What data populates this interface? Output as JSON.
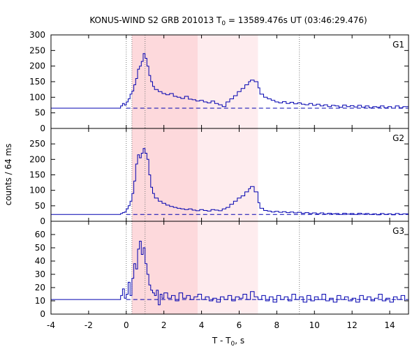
{
  "chart_data": {
    "type": "line",
    "title": {
      "prefix": "KONUS-WIND S2 GRB 201013 T",
      "sub": "0",
      "suffix": " = 13589.476s UT (03:46:29.476)"
    },
    "xlabel": {
      "prefix": "T - T",
      "sub": "0",
      "suffix": ", s"
    },
    "ylabel": "counts / 64 ms",
    "xlim": [
      -4,
      15
    ],
    "xticks": [
      -4,
      -2,
      0,
      2,
      4,
      6,
      8,
      10,
      12,
      14
    ],
    "shaded_intervals": [
      {
        "x0": 0.3,
        "x1": 3.8,
        "color": "#fdd9dc"
      },
      {
        "x0": 3.8,
        "x1": 7.0,
        "color": "#feecee"
      }
    ],
    "vertical_markers": [
      0.0,
      0.3,
      1.0,
      9.2
    ],
    "line_color": "#0000b0",
    "panels": [
      {
        "name": "G1",
        "ylim": [
          0,
          300
        ],
        "yticks": [
          0,
          50,
          100,
          150,
          200,
          250,
          300
        ],
        "background_level": 65,
        "series": [
          [
            -4.0,
            65
          ],
          [
            -0.4,
            65
          ],
          [
            -0.3,
            72
          ],
          [
            -0.2,
            80
          ],
          [
            -0.1,
            75
          ],
          [
            0.0,
            85
          ],
          [
            0.1,
            95
          ],
          [
            0.2,
            110
          ],
          [
            0.3,
            120
          ],
          [
            0.4,
            140
          ],
          [
            0.5,
            160
          ],
          [
            0.6,
            190
          ],
          [
            0.7,
            200
          ],
          [
            0.8,
            215
          ],
          [
            0.9,
            240
          ],
          [
            1.0,
            225
          ],
          [
            1.1,
            200
          ],
          [
            1.2,
            170
          ],
          [
            1.3,
            150
          ],
          [
            1.4,
            135
          ],
          [
            1.5,
            125
          ],
          [
            1.7,
            118
          ],
          [
            1.9,
            112
          ],
          [
            2.1,
            108
          ],
          [
            2.3,
            112
          ],
          [
            2.5,
            103
          ],
          [
            2.7,
            100
          ],
          [
            2.9,
            96
          ],
          [
            3.1,
            103
          ],
          [
            3.3,
            94
          ],
          [
            3.5,
            92
          ],
          [
            3.7,
            88
          ],
          [
            3.9,
            90
          ],
          [
            4.1,
            85
          ],
          [
            4.3,
            82
          ],
          [
            4.5,
            88
          ],
          [
            4.7,
            80
          ],
          [
            4.9,
            76
          ],
          [
            5.1,
            70
          ],
          [
            5.3,
            85
          ],
          [
            5.5,
            95
          ],
          [
            5.7,
            105
          ],
          [
            5.9,
            118
          ],
          [
            6.1,
            128
          ],
          [
            6.3,
            140
          ],
          [
            6.5,
            150
          ],
          [
            6.6,
            155
          ],
          [
            6.8,
            150
          ],
          [
            7.0,
            130
          ],
          [
            7.1,
            110
          ],
          [
            7.3,
            100
          ],
          [
            7.5,
            95
          ],
          [
            7.7,
            90
          ],
          [
            7.9,
            85
          ],
          [
            8.1,
            82
          ],
          [
            8.3,
            86
          ],
          [
            8.5,
            80
          ],
          [
            8.7,
            84
          ],
          [
            8.9,
            79
          ],
          [
            9.1,
            82
          ],
          [
            9.3,
            78
          ],
          [
            9.5,
            76
          ],
          [
            9.7,
            80
          ],
          [
            9.9,
            74
          ],
          [
            10.1,
            78
          ],
          [
            10.3,
            72
          ],
          [
            10.5,
            76
          ],
          [
            10.7,
            70
          ],
          [
            10.9,
            74
          ],
          [
            11.1,
            72
          ],
          [
            11.3,
            68
          ],
          [
            11.5,
            75
          ],
          [
            11.7,
            70
          ],
          [
            11.9,
            73
          ],
          [
            12.1,
            69
          ],
          [
            12.3,
            74
          ],
          [
            12.5,
            68
          ],
          [
            12.7,
            72
          ],
          [
            12.9,
            66
          ],
          [
            13.1,
            70
          ],
          [
            13.3,
            68
          ],
          [
            13.5,
            72
          ],
          [
            13.7,
            66
          ],
          [
            13.9,
            70
          ],
          [
            14.1,
            65
          ],
          [
            14.3,
            72
          ],
          [
            14.5,
            66
          ],
          [
            14.7,
            70
          ],
          [
            15.0,
            64
          ]
        ]
      },
      {
        "name": "G2",
        "ylim": [
          0,
          300
        ],
        "yticks": [
          0,
          50,
          100,
          150,
          200,
          250
        ],
        "background_level": 22,
        "series": [
          [
            -4.0,
            22
          ],
          [
            -0.4,
            22
          ],
          [
            -0.3,
            25
          ],
          [
            -0.2,
            28
          ],
          [
            -0.1,
            30
          ],
          [
            0.0,
            40
          ],
          [
            0.1,
            50
          ],
          [
            0.2,
            65
          ],
          [
            0.3,
            90
          ],
          [
            0.4,
            130
          ],
          [
            0.5,
            185
          ],
          [
            0.6,
            215
          ],
          [
            0.7,
            205
          ],
          [
            0.8,
            220
          ],
          [
            0.9,
            235
          ],
          [
            1.0,
            220
          ],
          [
            1.1,
            200
          ],
          [
            1.2,
            150
          ],
          [
            1.3,
            110
          ],
          [
            1.4,
            90
          ],
          [
            1.5,
            75
          ],
          [
            1.7,
            65
          ],
          [
            1.9,
            58
          ],
          [
            2.1,
            52
          ],
          [
            2.3,
            48
          ],
          [
            2.5,
            45
          ],
          [
            2.7,
            42
          ],
          [
            2.9,
            40
          ],
          [
            3.1,
            38
          ],
          [
            3.3,
            40
          ],
          [
            3.5,
            36
          ],
          [
            3.7,
            34
          ],
          [
            3.9,
            38
          ],
          [
            4.1,
            35
          ],
          [
            4.3,
            33
          ],
          [
            4.5,
            38
          ],
          [
            4.7,
            36
          ],
          [
            4.9,
            34
          ],
          [
            5.1,
            40
          ],
          [
            5.3,
            45
          ],
          [
            5.5,
            55
          ],
          [
            5.7,
            65
          ],
          [
            5.9,
            75
          ],
          [
            6.1,
            82
          ],
          [
            6.3,
            95
          ],
          [
            6.5,
            105
          ],
          [
            6.6,
            112
          ],
          [
            6.8,
            95
          ],
          [
            7.0,
            60
          ],
          [
            7.1,
            42
          ],
          [
            7.3,
            35
          ],
          [
            7.5,
            33
          ],
          [
            7.7,
            30
          ],
          [
            7.9,
            32
          ],
          [
            8.1,
            29
          ],
          [
            8.3,
            31
          ],
          [
            8.5,
            28
          ],
          [
            8.7,
            30
          ],
          [
            8.9,
            27
          ],
          [
            9.1,
            29
          ],
          [
            9.3,
            26
          ],
          [
            9.5,
            28
          ],
          [
            9.7,
            25
          ],
          [
            9.9,
            27
          ],
          [
            10.1,
            24
          ],
          [
            10.3,
            27
          ],
          [
            10.5,
            23
          ],
          [
            10.7,
            26
          ],
          [
            10.9,
            24
          ],
          [
            11.1,
            25
          ],
          [
            11.3,
            22
          ],
          [
            11.5,
            26
          ],
          [
            11.7,
            23
          ],
          [
            11.9,
            25
          ],
          [
            12.1,
            22
          ],
          [
            12.3,
            26
          ],
          [
            12.5,
            23
          ],
          [
            12.7,
            25
          ],
          [
            12.9,
            22
          ],
          [
            13.1,
            24
          ],
          [
            13.3,
            21
          ],
          [
            13.5,
            25
          ],
          [
            13.7,
            22
          ],
          [
            13.9,
            24
          ],
          [
            14.1,
            21
          ],
          [
            14.3,
            25
          ],
          [
            14.5,
            22
          ],
          [
            14.7,
            24
          ],
          [
            15.0,
            23
          ]
        ]
      },
      {
        "name": "G3",
        "ylim": [
          0,
          70
        ],
        "yticks": [
          0,
          10,
          20,
          30,
          40,
          50,
          60
        ],
        "background_level": 11,
        "series": [
          [
            -4.0,
            11
          ],
          [
            -0.4,
            11
          ],
          [
            -0.3,
            14
          ],
          [
            -0.2,
            19
          ],
          [
            -0.1,
            12
          ],
          [
            0.0,
            15
          ],
          [
            0.1,
            24
          ],
          [
            0.2,
            14
          ],
          [
            0.3,
            27
          ],
          [
            0.4,
            38
          ],
          [
            0.5,
            34
          ],
          [
            0.6,
            49
          ],
          [
            0.7,
            55
          ],
          [
            0.8,
            45
          ],
          [
            0.9,
            50
          ],
          [
            1.0,
            38
          ],
          [
            1.1,
            30
          ],
          [
            1.2,
            22
          ],
          [
            1.3,
            18
          ],
          [
            1.4,
            16
          ],
          [
            1.5,
            14
          ],
          [
            1.6,
            18
          ],
          [
            1.7,
            7
          ],
          [
            1.8,
            15
          ],
          [
            1.9,
            12
          ],
          [
            2.0,
            16
          ],
          [
            2.2,
            12
          ],
          [
            2.4,
            14
          ],
          [
            2.6,
            10
          ],
          [
            2.8,
            16
          ],
          [
            3.0,
            12
          ],
          [
            3.2,
            14
          ],
          [
            3.4,
            11
          ],
          [
            3.6,
            13
          ],
          [
            3.8,
            15
          ],
          [
            4.0,
            11
          ],
          [
            4.2,
            13
          ],
          [
            4.4,
            10
          ],
          [
            4.6,
            12
          ],
          [
            4.8,
            9
          ],
          [
            5.0,
            13
          ],
          [
            5.2,
            11
          ],
          [
            5.4,
            14
          ],
          [
            5.6,
            10
          ],
          [
            5.8,
            13
          ],
          [
            6.0,
            12
          ],
          [
            6.2,
            15
          ],
          [
            6.4,
            11
          ],
          [
            6.6,
            17
          ],
          [
            6.8,
            13
          ],
          [
            7.0,
            11
          ],
          [
            7.2,
            14
          ],
          [
            7.4,
            10
          ],
          [
            7.6,
            13
          ],
          [
            7.8,
            9
          ],
          [
            8.0,
            14
          ],
          [
            8.2,
            11
          ],
          [
            8.4,
            13
          ],
          [
            8.6,
            10
          ],
          [
            8.8,
            15
          ],
          [
            9.0,
            11
          ],
          [
            9.2,
            13
          ],
          [
            9.4,
            9
          ],
          [
            9.6,
            14
          ],
          [
            9.8,
            10
          ],
          [
            10.0,
            13
          ],
          [
            10.2,
            11
          ],
          [
            10.4,
            15
          ],
          [
            10.6,
            10
          ],
          [
            10.8,
            12
          ],
          [
            11.0,
            9
          ],
          [
            11.2,
            14
          ],
          [
            11.4,
            11
          ],
          [
            11.6,
            13
          ],
          [
            11.8,
            10
          ],
          [
            12.0,
            12
          ],
          [
            12.2,
            9
          ],
          [
            12.4,
            14
          ],
          [
            12.6,
            11
          ],
          [
            12.8,
            13
          ],
          [
            13.0,
            10
          ],
          [
            13.2,
            12
          ],
          [
            13.4,
            15
          ],
          [
            13.6,
            10
          ],
          [
            13.8,
            12
          ],
          [
            14.0,
            9
          ],
          [
            14.2,
            13
          ],
          [
            14.4,
            11
          ],
          [
            14.6,
            14
          ],
          [
            14.8,
            10
          ],
          [
            15.0,
            12
          ]
        ]
      }
    ]
  }
}
